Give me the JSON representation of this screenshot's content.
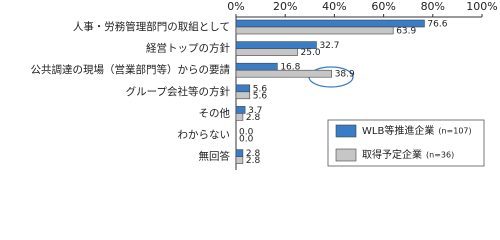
{
  "chart_data": {
    "type": "hbar",
    "categories": [
      "人事・労務管理部門の取組として",
      "経営トップの方針",
      "公共調達の現場（営業部門等）からの要請",
      "グループ会社等の方針",
      "その他",
      "わからない",
      "無回答"
    ],
    "series": [
      {
        "name": "WLB等推進企業",
        "n_label": "(n=107)",
        "color": "#3a7cc6",
        "values": [
          76.6,
          32.7,
          16.8,
          5.6,
          3.7,
          0.0,
          2.8
        ],
        "value_labels": [
          "76.6",
          "32.7",
          "16.8",
          "5.6",
          "3.7",
          "0.0",
          "2.8"
        ]
      },
      {
        "name": "取得予定企業",
        "n_label": "(n=36)",
        "color": "#c6c6c6",
        "values": [
          63.9,
          25.0,
          38.9,
          5.6,
          2.8,
          0.0,
          2.8
        ],
        "value_labels": [
          "63.9",
          "25.0",
          "38.9",
          "5.6",
          "2.8",
          "0.0",
          "2.8"
        ]
      }
    ],
    "xlim": [
      0,
      100
    ],
    "xticks": [
      {
        "value": 0,
        "label": "0%"
      },
      {
        "value": 20,
        "label": "20%"
      },
      {
        "value": 40,
        "label": "40%"
      },
      {
        "value": 60,
        "label": "60%"
      },
      {
        "value": 80,
        "label": "80%"
      },
      {
        "value": 100,
        "label": "100%"
      }
    ]
  }
}
